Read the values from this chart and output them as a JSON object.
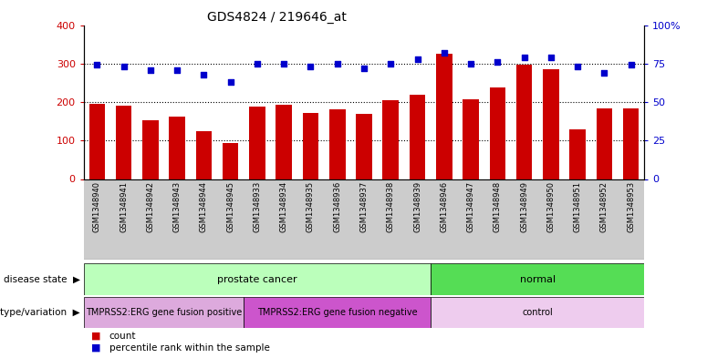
{
  "title": "GDS4824 / 219646_at",
  "samples": [
    "GSM1348940",
    "GSM1348941",
    "GSM1348942",
    "GSM1348943",
    "GSM1348944",
    "GSM1348945",
    "GSM1348933",
    "GSM1348934",
    "GSM1348935",
    "GSM1348936",
    "GSM1348937",
    "GSM1348938",
    "GSM1348939",
    "GSM1348946",
    "GSM1348947",
    "GSM1348948",
    "GSM1348949",
    "GSM1348950",
    "GSM1348951",
    "GSM1348952",
    "GSM1348953"
  ],
  "counts": [
    195,
    190,
    153,
    162,
    125,
    93,
    188,
    192,
    172,
    182,
    170,
    204,
    220,
    325,
    207,
    238,
    298,
    285,
    130,
    183,
    183
  ],
  "percentiles": [
    74,
    73,
    71,
    71,
    68,
    63,
    75,
    75,
    73,
    75,
    72,
    75,
    78,
    82,
    75,
    76,
    79,
    79,
    73,
    69,
    74
  ],
  "bar_color": "#cc0000",
  "dot_color": "#0000cc",
  "ylim_left": [
    0,
    400
  ],
  "ylim_right": [
    0,
    100
  ],
  "yticks_left": [
    0,
    100,
    200,
    300,
    400
  ],
  "yticks_right": [
    0,
    25,
    50,
    75,
    100
  ],
  "ytick_labels_right": [
    "0",
    "25",
    "50",
    "75",
    "100%"
  ],
  "grid_values": [
    100,
    200,
    300
  ],
  "disease_state_groups": [
    {
      "label": "prostate cancer",
      "start": 0,
      "end": 13,
      "color": "#bbffbb"
    },
    {
      "label": "normal",
      "start": 13,
      "end": 21,
      "color": "#55dd55"
    }
  ],
  "genotype_groups": [
    {
      "label": "TMPRSS2:ERG gene fusion positive",
      "start": 0,
      "end": 6,
      "color": "#ddaadd"
    },
    {
      "label": "TMPRSS2:ERG gene fusion negative",
      "start": 6,
      "end": 13,
      "color": "#cc55cc"
    },
    {
      "label": "control",
      "start": 13,
      "end": 21,
      "color": "#eeccee"
    }
  ],
  "disease_state_label": "disease state",
  "genotype_label": "genotype/variation",
  "legend_count_label": "count",
  "legend_percentile_label": "percentile rank within the sample",
  "bg_color": "#ffffff",
  "plot_bg_color": "#ffffff",
  "xtick_bg_color": "#cccccc"
}
